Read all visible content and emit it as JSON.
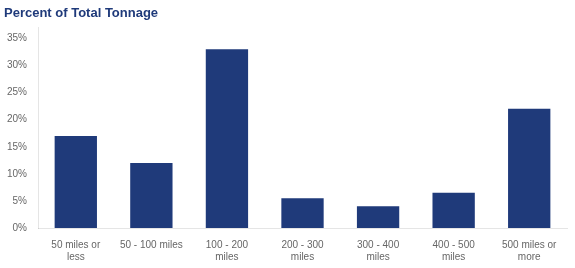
{
  "chart_data": {
    "type": "bar",
    "title": "Percent of Total Tonnage",
    "categories": [
      "50 miles or\nless",
      "50 - 100 miles",
      "100 - 200\nmiles",
      "200 - 300\nmiles",
      "300 - 400\nmiles",
      "400 - 500\nmiles",
      "500 miles or\nmore"
    ],
    "values": [
      17,
      12,
      33,
      5.5,
      4,
      6.5,
      22
    ],
    "color": "#1F3A7A",
    "ylim": [
      0,
      37
    ],
    "yticks": [
      {
        "value": 0,
        "label": "0%"
      },
      {
        "value": 5,
        "label": "5%"
      },
      {
        "value": 10,
        "label": "10%"
      },
      {
        "value": 15,
        "label": "15%"
      },
      {
        "value": 20,
        "label": "20%"
      },
      {
        "value": 25,
        "label": "25%"
      },
      {
        "value": 30,
        "label": "30%"
      },
      {
        "value": 35,
        "label": "35%"
      }
    ],
    "grid": false
  }
}
